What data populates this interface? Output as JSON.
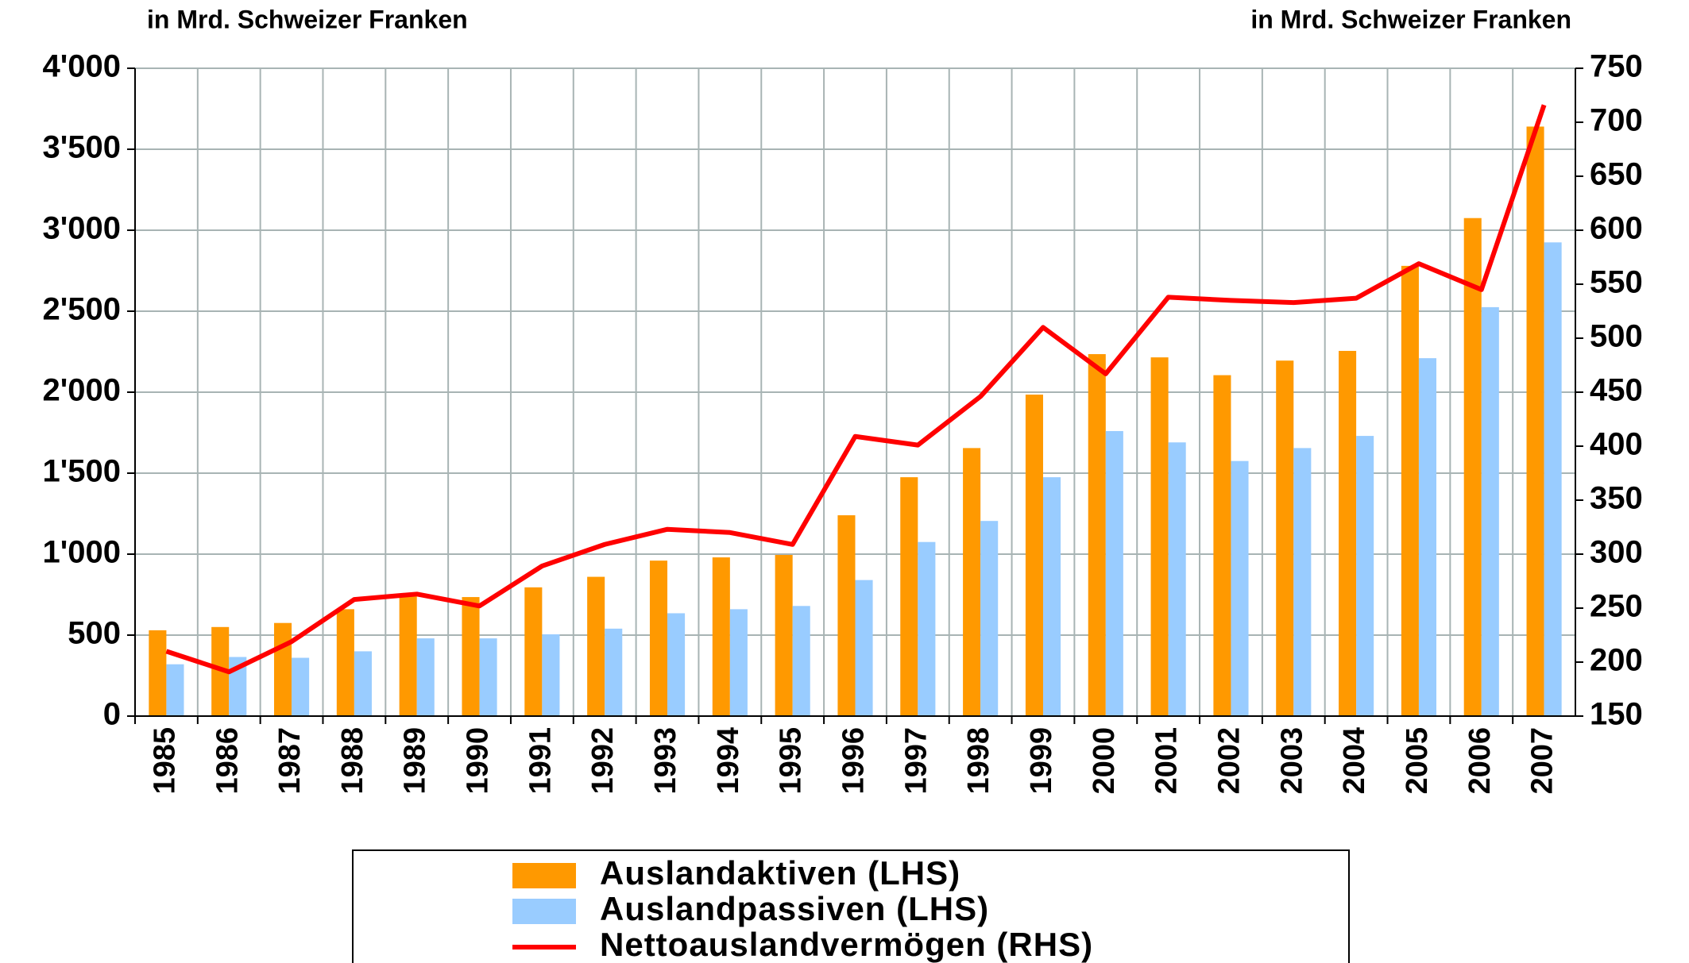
{
  "chart_data": {
    "type": "bar_line",
    "y_label": "in Mrd. Schweizer Franken",
    "y2_label": "in Mrd. Schweizer Franken",
    "categories": [
      "1985",
      "1986",
      "1987",
      "1988",
      "1989",
      "1990",
      "1991",
      "1992",
      "1993",
      "1994",
      "1995",
      "1996",
      "1997",
      "1998",
      "1999",
      "2000",
      "2001",
      "2002",
      "2003",
      "2004",
      "2005",
      "2006",
      "2007"
    ],
    "series": [
      {
        "name": "Auslandaktiven (LHS)",
        "type": "bar",
        "color": "#ff9900",
        "values": [
          530,
          550,
          575,
          660,
          750,
          735,
          795,
          860,
          960,
          980,
          995,
          1240,
          1475,
          1655,
          1985,
          2235,
          2215,
          2105,
          2195,
          2255,
          2780,
          3075,
          3640
        ]
      },
      {
        "name": "Auslandpassiven (LHS)",
        "type": "bar",
        "color": "#99ccff",
        "values": [
          320,
          365,
          360,
          400,
          480,
          480,
          505,
          540,
          635,
          660,
          680,
          840,
          1075,
          1205,
          1475,
          1760,
          1690,
          1575,
          1655,
          1730,
          2210,
          2525,
          2925
        ]
      },
      {
        "name": "Nettoauslandvermögen (RHS)",
        "type": "line",
        "axis": "y2",
        "color": "#ff0000",
        "values": [
          210,
          191,
          219,
          258,
          263,
          252,
          289,
          309,
          323,
          320,
          309,
          409,
          401,
          446,
          510,
          467,
          538,
          535,
          533,
          537,
          569,
          545,
          716
        ]
      }
    ],
    "ylim": [
      0,
      4000
    ],
    "yticks": [
      0,
      500,
      {
        "value": 1000,
        "label": "1'000"
      },
      {
        "value": 1500,
        "label": "1'500"
      },
      {
        "value": 2000,
        "label": "2'000"
      },
      {
        "value": 2500,
        "label": "2'500"
      },
      {
        "value": 3000,
        "label": "3'000"
      },
      {
        "value": 3500,
        "label": "3'500"
      },
      {
        "value": 4000,
        "label": "4'000"
      }
    ],
    "y2lim": [
      150,
      750
    ],
    "y2ticks": [
      150,
      200,
      250,
      300,
      350,
      400,
      450,
      500,
      550,
      600,
      650,
      700,
      750
    ],
    "grid": true,
    "legend": "bottom"
  }
}
